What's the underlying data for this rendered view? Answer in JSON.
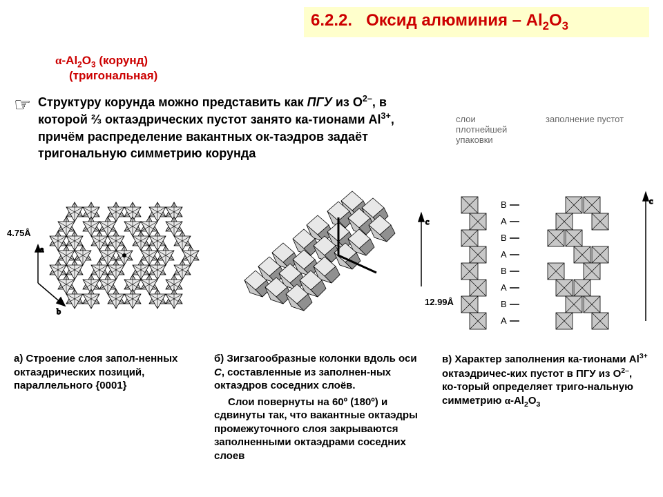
{
  "header": {
    "section_num": "6.2.2.",
    "title_pre": "Оксид алюминия – Al",
    "title_sub": "2",
    "title_post": "O",
    "title_sub2": "3"
  },
  "subtitle": {
    "alpha": "α",
    "line1_pre": "-Al",
    "line1_sub1": "2",
    "line1_mid": "O",
    "line1_sub2": "3",
    "line1_post": " (корунд)",
    "line2": "(тригональная)"
  },
  "maintext": {
    "t1": "Структуру корунда можно представить как ",
    "t1b": "ПГУ",
    "t2": " из O",
    "t2sup": "2–",
    "t3": ",  в которой ⅔ октаэдрических пустот занято ка-тионами Al",
    "t3sup": "3+",
    "t4": ", причём распределение вакантных ок-таэдров  задаёт  тригональную симметрию корунда"
  },
  "dims": {
    "a": "4.75Å",
    "c": "12.99Å"
  },
  "toplabels": {
    "c1": "слои\nплотнейшей\nупаковки",
    "c2": "заполнение пустот"
  },
  "captions": {
    "a": "а) Строение слоя запол-ненных октаэдрических позиций, параллельного {0001}",
    "b1": "б) Зигзагообразные колонки вдоль оси ",
    "b1i": "С",
    "b1e": ", составленные из заполнен-ных октаэдров соседних слоёв.",
    "b2": "Слои повернуты на 60º (180º) и сдвинуты так, что вакантные октаэдры промежуточного слоя закрываются заполненными октаэдрами соседних слоев",
    "c1": "в) Характер заполнения ка-тионами Al",
    "c1sup": "3+",
    "c2": "  октаэдричес-ких пустот в ПГУ из O",
    "c2sup": "2–",
    "c3": ", ко-торый определяет триго-нальную симметрию ",
    "c3a": "α",
    "c4": "-Al",
    "c4sub": "2",
    "c5": "O",
    "c5sub": "3"
  },
  "colors": {
    "heading": "#cc0000",
    "header_bg": "#ffffcc",
    "octa_fill": "#c8c8c8",
    "octa_dark": "#909090",
    "octa_light": "#e8e8e8",
    "stroke": "#000000",
    "label_gray": "#666666"
  },
  "diagc": {
    "layers": [
      "B",
      "A",
      "B",
      "A",
      "B",
      "A",
      "B",
      "A"
    ]
  }
}
